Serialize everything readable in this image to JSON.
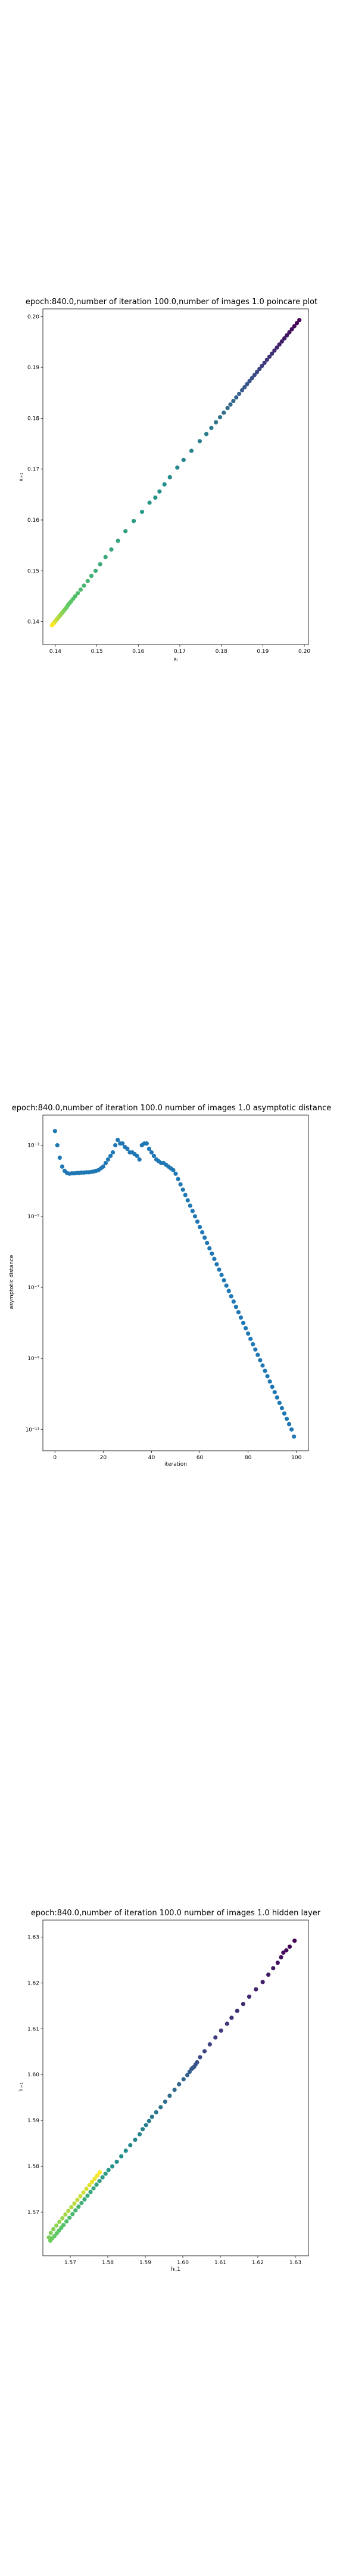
{
  "chart_data": [
    {
      "type": "scatter",
      "title": "epoch:840.0,number of iteration 100.0,number of images 1.0 poincare plot",
      "xlabel": "xᵢ",
      "ylabel": "xᵢ₊₁",
      "xlim": [
        0.137,
        0.201
      ],
      "ylim": [
        0.1355,
        0.2015
      ],
      "xticks": [
        "0.14",
        "0.15",
        "0.16",
        "0.17",
        "0.18",
        "0.19",
        "0.20"
      ],
      "yticks": [
        "0.14",
        "0.15",
        "0.16",
        "0.17",
        "0.18",
        "0.19",
        "0.20"
      ],
      "colormap": "viridis",
      "color_order": "first point dark purple at (0.199, 0.1993), last point yellow near (0.139, 0.1392)",
      "series": [
        {
          "x": [
            0.1988,
            0.1982,
            0.1976,
            0.197,
            0.1964,
            0.1958,
            0.1952,
            0.1946,
            0.194,
            0.1934,
            0.1928,
            0.1922,
            0.1916,
            0.191,
            0.1904,
            0.1898,
            0.1892,
            0.1886,
            0.188,
            0.1874,
            0.1868,
            0.1862,
            0.1856,
            0.185,
            0.1843,
            0.1836,
            0.1829,
            0.1822,
            0.1815,
            0.1806,
            0.1797,
            0.1787,
            0.1776,
            0.1764,
            0.1748,
            0.1728,
            0.1709,
            0.1694,
            0.1676,
            0.1663,
            0.1651,
            0.1641,
            0.1627,
            0.1609,
            0.1589,
            0.1569,
            0.1551,
            0.1535,
            0.1521,
            0.1508,
            0.1497,
            0.1487,
            0.1478,
            0.1469,
            0.1461,
            0.1454,
            0.1448,
            0.1443,
            0.1438,
            0.1434,
            0.143,
            0.1427,
            0.1424,
            0.1421,
            0.1418,
            0.1416,
            0.1414,
            0.1412,
            0.141,
            0.1408,
            0.1406,
            0.1404,
            0.1402,
            0.14,
            0.1399,
            0.1397,
            0.1396,
            0.1395,
            0.1394,
            0.1393,
            0.1392
          ],
          "y": [
            0.1993,
            0.1987,
            0.1981,
            0.1975,
            0.1969,
            0.1963,
            0.1957,
            0.1951,
            0.1945,
            0.1939,
            0.1933,
            0.1927,
            0.1921,
            0.1915,
            0.1909,
            0.1903,
            0.1897,
            0.1891,
            0.1885,
            0.1879,
            0.1873,
            0.1867,
            0.1861,
            0.1855,
            0.1848,
            0.1841,
            0.1834,
            0.1827,
            0.182,
            0.1811,
            0.1802,
            0.1792,
            0.1781,
            0.1769,
            0.1755,
            0.1736,
            0.1718,
            0.1703,
            0.1684,
            0.167,
            0.1656,
            0.1644,
            0.1634,
            0.1616,
            0.1598,
            0.1578,
            0.1559,
            0.1542,
            0.1527,
            0.1513,
            0.15,
            0.149,
            0.148,
            0.1471,
            0.1463,
            0.1456,
            0.145,
            0.1445,
            0.144,
            0.1436,
            0.1432,
            0.1428,
            0.1425,
            0.1422,
            0.1419,
            0.1417,
            0.1415,
            0.1413,
            0.1411,
            0.1409,
            0.1407,
            0.1405,
            0.1403,
            0.1401,
            0.14,
            0.1398,
            0.1397,
            0.1396,
            0.1395,
            0.1394,
            0.1393
          ]
        }
      ]
    },
    {
      "type": "scatter",
      "title": "epoch:840.0,number of iteration 100.0  number of images 1.0 asymptotic distance",
      "xlabel": "iteration",
      "ylabel": "asymptotic distance",
      "yscale": "log",
      "xlim": [
        -5,
        105
      ],
      "ylim_log10": [
        -11.6,
        -2.15
      ],
      "xticks": [
        "0",
        "20",
        "40",
        "60",
        "80",
        "100"
      ],
      "yticks": [
        "10⁻³",
        "10⁻⁵",
        "10⁻⁷",
        "10⁻⁹",
        "10⁻¹¹"
      ],
      "color": "#1f77b4",
      "series": [
        {
          "x": [
            0,
            1,
            2,
            3,
            4,
            5,
            6,
            7,
            8,
            9,
            10,
            11,
            12,
            13,
            14,
            15,
            16,
            17,
            18,
            19,
            20,
            21,
            22,
            23,
            24,
            25,
            26,
            27,
            28,
            29,
            30,
            31,
            32,
            33,
            34,
            35,
            36,
            37,
            38,
            39,
            40,
            41,
            42,
            43,
            44,
            45,
            46,
            47,
            48,
            49,
            50,
            51,
            52,
            53,
            54,
            55,
            56,
            57,
            58,
            59,
            60,
            61,
            62,
            63,
            64,
            65,
            66,
            67,
            68,
            69,
            70,
            71,
            72,
            73,
            74,
            75,
            76,
            77,
            78,
            79,
            80,
            81,
            82,
            83,
            84,
            85,
            86,
            87,
            88,
            89,
            90,
            91,
            92,
            93,
            94,
            95,
            96,
            97,
            98,
            99
          ],
          "y_log10": [
            -2.6,
            -3.0,
            -3.35,
            -3.6,
            -3.72,
            -3.78,
            -3.8,
            -3.79,
            -3.79,
            -3.78,
            -3.78,
            -3.77,
            -3.77,
            -3.76,
            -3.76,
            -3.75,
            -3.74,
            -3.72,
            -3.7,
            -3.65,
            -3.6,
            -3.5,
            -3.4,
            -3.3,
            -3.2,
            -3.0,
            -2.85,
            -2.95,
            -2.95,
            -3.05,
            -3.1,
            -3.2,
            -3.2,
            -3.25,
            -3.3,
            -3.4,
            -3.0,
            -2.95,
            -2.95,
            -3.1,
            -3.2,
            -3.3,
            -3.4,
            -3.45,
            -3.5,
            -3.5,
            -3.55,
            -3.6,
            -3.65,
            -3.7,
            -3.8,
            -3.95,
            -4.1,
            -4.25,
            -4.4,
            -4.55,
            -4.7,
            -4.85,
            -5.0,
            -5.15,
            -5.3,
            -5.45,
            -5.6,
            -5.75,
            -5.9,
            -6.05,
            -6.2,
            -6.35,
            -6.5,
            -6.65,
            -6.8,
            -6.95,
            -7.1,
            -7.25,
            -7.4,
            -7.55,
            -7.7,
            -7.85,
            -8.0,
            -8.15,
            -8.3,
            -8.45,
            -8.6,
            -8.75,
            -8.9,
            -9.05,
            -9.2,
            -9.35,
            -9.5,
            -9.65,
            -9.8,
            -9.95,
            -10.1,
            -10.25,
            -10.4,
            -10.55,
            -10.7,
            -10.85,
            -11.0,
            -11.2
          ]
        }
      ]
    },
    {
      "type": "scatter",
      "title": "epoch:840.0,number of iteration 100.0  number of images 1.0 hidden layer",
      "xlabel": "hᵢ,1",
      "ylabel": "hᵢ₊₁",
      "xlim": [
        1.5627,
        1.6335
      ],
      "ylim": [
        1.5605,
        1.6337
      ],
      "xticks": [
        "1.57",
        "1.58",
        "1.59",
        "1.60",
        "1.61",
        "1.62",
        "1.63"
      ],
      "yticks": [
        "1.57",
        "1.58",
        "1.59",
        "1.60",
        "1.61",
        "1.62",
        "1.63"
      ],
      "colormap": "viridis",
      "color_order": "first points dark purple near (1.63, 1.63), last points yellow near (1.578, 1.579)",
      "series": [
        {
          "x": [
            1.6298,
            1.6285,
            1.6276,
            1.6268,
            1.6262,
            1.6253,
            1.6241,
            1.6228,
            1.6213,
            1.6195,
            1.6177,
            1.6161,
            1.6145,
            1.613,
            1.6118,
            1.6102,
            1.6087,
            1.6072,
            1.6058,
            1.6046,
            1.6038,
            1.6034,
            1.603,
            1.6027,
            1.6023,
            1.6018,
            1.6012,
            1.6002,
            1.599,
            1.5978,
            1.5965,
            1.5953,
            1.5941,
            1.5929,
            1.5918,
            1.591,
            1.5902,
            1.5893,
            1.5885,
            1.5873,
            1.586,
            1.5848,
            1.5836,
            1.5824,
            1.5812,
            1.5802,
            1.5794,
            1.5786,
            1.5778,
            1.577,
            1.5762,
            1.5754,
            1.5746,
            1.5738,
            1.573,
            1.5722,
            1.5714,
            1.5706,
            1.5698,
            1.569,
            1.5682,
            1.5676,
            1.567,
            1.5664,
            1.5658,
            1.5652,
            1.5647,
            1.5643,
            1.5648,
            1.5655,
            1.5663,
            1.5671,
            1.5679,
            1.5687,
            1.5695,
            1.5703,
            1.5711,
            1.5719,
            1.5727,
            1.5735,
            1.5743,
            1.5751,
            1.5758,
            1.5765,
            1.5772,
            1.5779
          ],
          "y": [
            1.6292,
            1.6279,
            1.6271,
            1.6266,
            1.6256,
            1.6244,
            1.6232,
            1.6218,
            1.6202,
            1.6186,
            1.617,
            1.6154,
            1.6139,
            1.6124,
            1.6111,
            1.6096,
            1.6081,
            1.6066,
            1.6051,
            1.6038,
            1.6027,
            1.6022,
            1.6017,
            1.6015,
            1.6012,
            1.6006,
            1.5999,
            1.599,
            1.5979,
            1.5967,
            1.5954,
            1.5941,
            1.5929,
            1.5918,
            1.5908,
            1.5899,
            1.589,
            1.5881,
            1.587,
            1.5858,
            1.5846,
            1.5834,
            1.5822,
            1.581,
            1.58,
            1.5792,
            1.5784,
            1.5776,
            1.5768,
            1.576,
            1.5752,
            1.5744,
            1.5736,
            1.5728,
            1.572,
            1.5712,
            1.5704,
            1.5696,
            1.5688,
            1.568,
            1.5672,
            1.5666,
            1.566,
            1.5654,
            1.5648,
            1.5643,
            1.5638,
            1.5645,
            1.5655,
            1.5663,
            1.5671,
            1.5679,
            1.5687,
            1.5695,
            1.5703,
            1.5711,
            1.5719,
            1.5727,
            1.5735,
            1.5743,
            1.5751,
            1.5759,
            1.5766,
            1.5773,
            1.578,
            1.5787
          ]
        }
      ]
    }
  ]
}
